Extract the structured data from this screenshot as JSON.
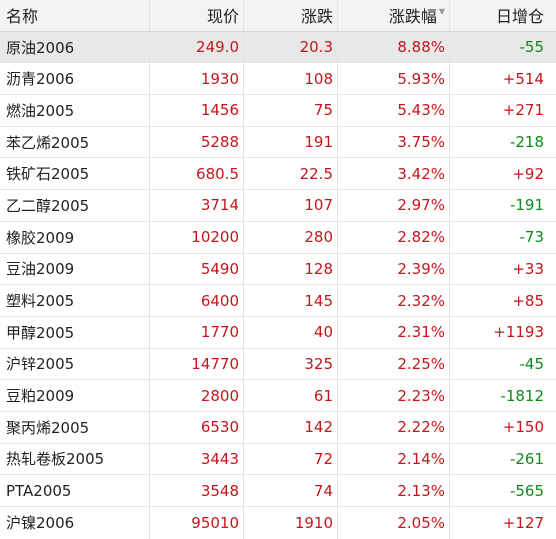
{
  "table": {
    "headers": {
      "name": "名称",
      "price": "现价",
      "change": "涨跌",
      "pct": "涨跌幅",
      "oi": "日增仓",
      "sort_arrow": "▼"
    },
    "rows": [
      {
        "name": "原油2006",
        "price": "249.0",
        "change": "20.3",
        "pct": "8.88%",
        "oi": "-55",
        "oi_dir": "green"
      },
      {
        "name": "沥青2006",
        "price": "1930",
        "change": "108",
        "pct": "5.93%",
        "oi": "+514",
        "oi_dir": "red"
      },
      {
        "name": "燃油2005",
        "price": "1456",
        "change": "75",
        "pct": "5.43%",
        "oi": "+271",
        "oi_dir": "red"
      },
      {
        "name": "苯乙烯2005",
        "price": "5288",
        "change": "191",
        "pct": "3.75%",
        "oi": "-218",
        "oi_dir": "green"
      },
      {
        "name": "铁矿石2005",
        "price": "680.5",
        "change": "22.5",
        "pct": "3.42%",
        "oi": "+92",
        "oi_dir": "red"
      },
      {
        "name": "乙二醇2005",
        "price": "3714",
        "change": "107",
        "pct": "2.97%",
        "oi": "-191",
        "oi_dir": "green"
      },
      {
        "name": "橡胶2009",
        "price": "10200",
        "change": "280",
        "pct": "2.82%",
        "oi": "-73",
        "oi_dir": "green"
      },
      {
        "name": "豆油2009",
        "price": "5490",
        "change": "128",
        "pct": "2.39%",
        "oi": "+33",
        "oi_dir": "red"
      },
      {
        "name": "塑料2005",
        "price": "6400",
        "change": "145",
        "pct": "2.32%",
        "oi": "+85",
        "oi_dir": "red"
      },
      {
        "name": "甲醇2005",
        "price": "1770",
        "change": "40",
        "pct": "2.31%",
        "oi": "+1193",
        "oi_dir": "red"
      },
      {
        "name": "沪锌2005",
        "price": "14770",
        "change": "325",
        "pct": "2.25%",
        "oi": "-45",
        "oi_dir": "green"
      },
      {
        "name": "豆粕2009",
        "price": "2800",
        "change": "61",
        "pct": "2.23%",
        "oi": "-1812",
        "oi_dir": "green"
      },
      {
        "name": "聚丙烯2005",
        "price": "6530",
        "change": "142",
        "pct": "2.22%",
        "oi": "+150",
        "oi_dir": "red"
      },
      {
        "name": "热轧卷板2005",
        "price": "3443",
        "change": "72",
        "pct": "2.14%",
        "oi": "-261",
        "oi_dir": "green"
      },
      {
        "name": "PTA2005",
        "price": "3548",
        "change": "74",
        "pct": "2.13%",
        "oi": "-565",
        "oi_dir": "green"
      },
      {
        "name": "沪镍2006",
        "price": "95010",
        "change": "1910",
        "pct": "2.05%",
        "oi": "+127",
        "oi_dir": "red"
      }
    ]
  },
  "colors": {
    "up": "#c4161c",
    "down": "#0e8a1a",
    "header_bg": "#f3f3f3",
    "selected_bg": "#e8e8e8"
  }
}
